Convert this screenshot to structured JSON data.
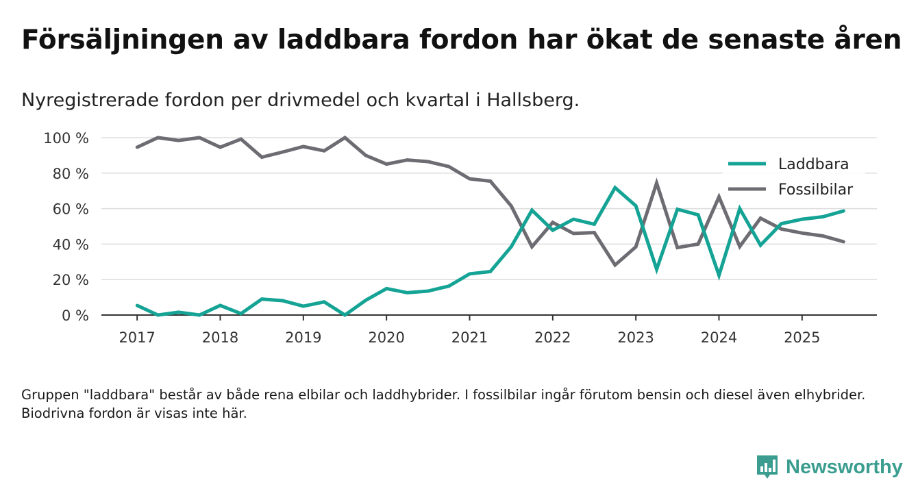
{
  "title": "Försäljningen av laddbara fordon har ökat de senaste åren",
  "subtitle": "Nyregistrerade fordon per drivmedel och kvartal i Hallsberg.",
  "footnote": "Gruppen \"laddbara\" består av både rena elbilar och laddhybrider. I fossilbilar ingår förutom bensin och diesel även elhybrider. Biodrivna fordon är visas inte här.",
  "brand": {
    "name": "Newsworthy",
    "icon": "bar-chart-pin-icon",
    "color": "#3a9d8f"
  },
  "colors": {
    "laddbara": "#14a394",
    "fossilbilar": "#6c6c72",
    "grid": "#dddddd",
    "axis": "#333333"
  },
  "chart_data": {
    "type": "line",
    "title": "Försäljningen av laddbara fordon har ökat de senaste åren",
    "xlabel": "",
    "ylabel": "",
    "ylim": [
      0,
      100
    ],
    "yticks": [
      0,
      20,
      40,
      60,
      80,
      100
    ],
    "ytick_labels": [
      "0 %",
      "20 %",
      "40 %",
      "60 %",
      "80 %",
      "100 %"
    ],
    "xlim": [
      2016.57,
      2025.9
    ],
    "xticks": [
      2017,
      2018,
      2019,
      2020,
      2021,
      2022,
      2023,
      2024,
      2025
    ],
    "xtick_labels": [
      "2017",
      "2018",
      "2019",
      "2020",
      "2021",
      "2022",
      "2023",
      "2024",
      "2025"
    ],
    "grid": true,
    "legend_position": "top-right",
    "x": [
      2017.0,
      2017.25,
      2017.5,
      2017.75,
      2018.0,
      2018.25,
      2018.5,
      2018.75,
      2019.0,
      2019.25,
      2019.5,
      2019.75,
      2020.0,
      2020.25,
      2020.5,
      2020.75,
      2021.0,
      2021.25,
      2021.5,
      2021.75,
      2022.0,
      2022.25,
      2022.5,
      2022.75,
      2023.0,
      2023.25,
      2023.5,
      2023.75,
      2024.0,
      2024.25,
      2024.5,
      2024.75,
      2025.0,
      2025.25,
      2025.5
    ],
    "series": [
      {
        "name": "Laddbara",
        "color": "#14a394",
        "values": [
          5.4,
          0,
          1.6,
          0,
          5.4,
          0.8,
          9,
          8.1,
          5,
          7.4,
          0,
          8.3,
          14.9,
          12.6,
          13.5,
          16.3,
          23.2,
          24.5,
          38.5,
          59.1,
          47.8,
          54,
          51.2,
          71.8,
          61.6,
          25.8,
          59.6,
          56.5,
          22.4,
          60,
          39.4,
          51.5,
          54,
          55.4,
          58.7
        ]
      },
      {
        "name": "Fossilbilar",
        "color": "#6c6c72",
        "values": [
          94.6,
          100,
          98.4,
          100,
          94.6,
          99.2,
          89,
          91.9,
          95,
          92.6,
          100,
          90,
          85.1,
          87.4,
          86.5,
          83.7,
          76.8,
          75.5,
          61.5,
          38.5,
          52.2,
          46,
          46.5,
          28.2,
          38.4,
          74.4,
          38,
          40,
          66.6,
          38.6,
          54.6,
          48.5,
          46.2,
          44.6,
          41.3
        ]
      }
    ]
  }
}
